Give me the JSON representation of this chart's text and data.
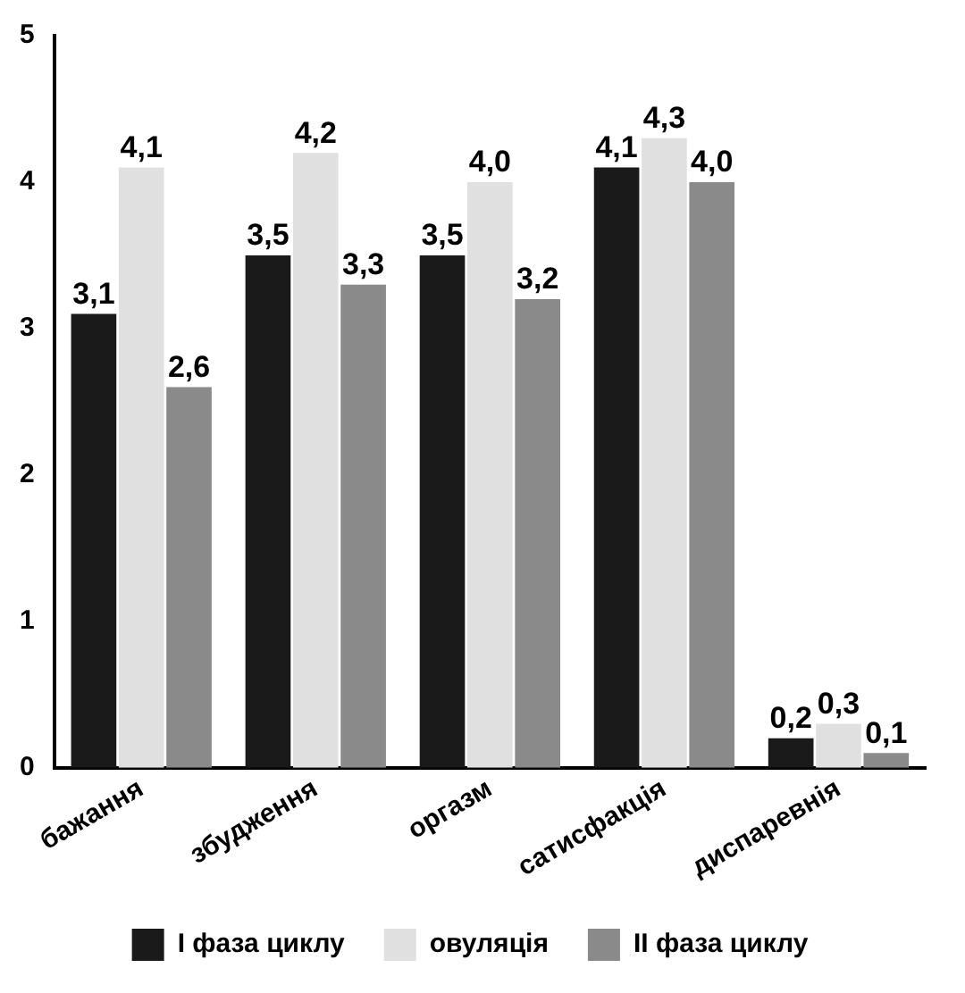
{
  "chart_data": {
    "type": "bar",
    "categories": [
      "бажання",
      "збудження",
      "оргазм",
      "сатисфакція",
      "диспаревнія"
    ],
    "series": [
      {
        "name": "I фаза циклу",
        "color": "#1a1a1a",
        "values": [
          3.1,
          3.5,
          3.5,
          4.1,
          0.2
        ],
        "value_labels": [
          "3,1",
          "3,5",
          "3,5",
          "4,1",
          "0,2"
        ]
      },
      {
        "name": "овуляція",
        "color": "#e0e0e0",
        "values": [
          4.1,
          4.2,
          4.0,
          4.3,
          0.3
        ],
        "value_labels": [
          "4,1",
          "4,2",
          "4,0",
          "4,3",
          "0,3"
        ]
      },
      {
        "name": "II фаза циклу",
        "color": "#8a8a8a",
        "values": [
          2.6,
          3.3,
          3.2,
          4.0,
          0.1
        ],
        "value_labels": [
          "2,6",
          "3,3",
          "3,2",
          "4,0",
          "0,1"
        ]
      }
    ],
    "ylim": [
      0,
      5
    ],
    "yticks": [
      0,
      1,
      2,
      3,
      4,
      5
    ],
    "grid": false,
    "legend": "bottom"
  }
}
